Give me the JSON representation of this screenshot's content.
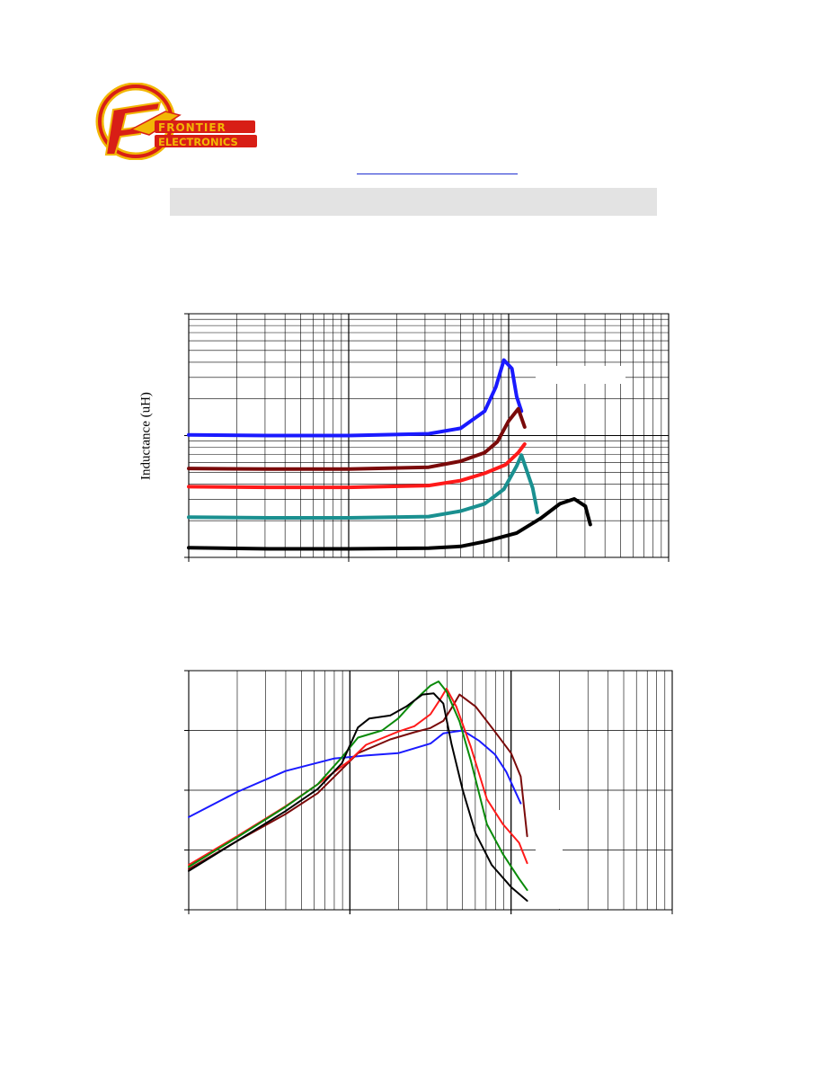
{
  "logo": {
    "line1": "FRONTIER",
    "line2": "ELECTRONICS",
    "icon": "frontier-electronics-logo"
  },
  "colors": {
    "logo_ring": "#d81e16",
    "logo_gold": "#f2b705",
    "series": [
      "#1a1aff",
      "#7a0a0a",
      "#ff1a1a",
      "#1a9090",
      "#000000",
      "#0a8a0a"
    ]
  },
  "chart_data": [
    {
      "type": "line",
      "title": "",
      "xlabel": "",
      "ylabel": "Inductance (uH)",
      "x_scale": "log",
      "y_scale": "log",
      "x_decades": 3,
      "y_decades": 2,
      "grid": true,
      "legend": "right",
      "series": [
        {
          "name": "",
          "color": "#1a1aff",
          "points": [
            [
              0,
              1.005
            ],
            [
              0.5,
              1.0
            ],
            [
              1.0,
              1.0
            ],
            [
              1.5,
              1.015
            ],
            [
              1.7,
              1.06
            ],
            [
              1.85,
              1.2
            ],
            [
              1.92,
              1.4
            ],
            [
              1.97,
              1.62
            ],
            [
              2.02,
              1.55
            ],
            [
              2.05,
              1.32
            ],
            [
              2.08,
              1.2
            ]
          ]
        },
        {
          "name": "",
          "color": "#7a0a0a",
          "points": [
            [
              0,
              0.73
            ],
            [
              0.5,
              0.725
            ],
            [
              1.0,
              0.725
            ],
            [
              1.5,
              0.74
            ],
            [
              1.7,
              0.79
            ],
            [
              1.85,
              0.86
            ],
            [
              1.93,
              0.95
            ],
            [
              2.0,
              1.12
            ],
            [
              2.06,
              1.22
            ],
            [
              2.1,
              1.07
            ]
          ]
        },
        {
          "name": "",
          "color": "#ff1a1a",
          "points": [
            [
              0,
              0.58
            ],
            [
              0.5,
              0.575
            ],
            [
              1.0,
              0.575
            ],
            [
              1.5,
              0.59
            ],
            [
              1.7,
              0.63
            ],
            [
              1.85,
              0.69
            ],
            [
              1.98,
              0.76
            ],
            [
              2.06,
              0.86
            ],
            [
              2.1,
              0.93
            ]
          ]
        },
        {
          "name": "",
          "color": "#1a9090",
          "points": [
            [
              0,
              0.33
            ],
            [
              0.5,
              0.325
            ],
            [
              1.0,
              0.325
            ],
            [
              1.5,
              0.335
            ],
            [
              1.7,
              0.38
            ],
            [
              1.85,
              0.44
            ],
            [
              1.97,
              0.56
            ],
            [
              2.05,
              0.75
            ],
            [
              2.08,
              0.84
            ],
            [
              2.15,
              0.57
            ],
            [
              2.18,
              0.37
            ]
          ]
        },
        {
          "name": "",
          "color": "#000000",
          "points": [
            [
              0,
              0.08
            ],
            [
              0.5,
              0.07
            ],
            [
              1.0,
              0.07
            ],
            [
              1.5,
              0.075
            ],
            [
              1.7,
              0.09
            ],
            [
              1.85,
              0.13
            ],
            [
              2.05,
              0.2
            ],
            [
              2.2,
              0.32
            ],
            [
              2.32,
              0.44
            ],
            [
              2.41,
              0.48
            ],
            [
              2.48,
              0.42
            ],
            [
              2.51,
              0.27
            ]
          ]
        }
      ]
    },
    {
      "type": "line",
      "title": "",
      "xlabel": "",
      "ylabel": "",
      "x_scale": "log",
      "x_decades": 3,
      "y_divisions": 4,
      "grid": true,
      "legend": "right",
      "series": [
        {
          "name": "",
          "color": "#1a1aff",
          "points": [
            [
              0,
              1.55
            ],
            [
              0.3,
              1.97
            ],
            [
              0.6,
              2.32
            ],
            [
              0.9,
              2.53
            ],
            [
              1.1,
              2.58
            ],
            [
              1.3,
              2.62
            ],
            [
              1.5,
              2.78
            ],
            [
              1.58,
              2.95
            ],
            [
              1.7,
              3.0
            ],
            [
              1.8,
              2.83
            ],
            [
              1.9,
              2.6
            ],
            [
              1.97,
              2.31
            ],
            [
              2.06,
              1.78
            ]
          ]
        },
        {
          "name": "",
          "color": "#7a0a0a",
          "points": [
            [
              0,
              0.68
            ],
            [
              0.3,
              1.15
            ],
            [
              0.6,
              1.6
            ],
            [
              0.8,
              1.95
            ],
            [
              0.95,
              2.35
            ],
            [
              1.05,
              2.62
            ],
            [
              1.25,
              2.85
            ],
            [
              1.4,
              2.97
            ],
            [
              1.5,
              3.04
            ],
            [
              1.58,
              3.16
            ],
            [
              1.63,
              3.37
            ],
            [
              1.68,
              3.6
            ],
            [
              1.78,
              3.4
            ],
            [
              1.9,
              2.98
            ],
            [
              2.0,
              2.62
            ],
            [
              2.06,
              2.23
            ],
            [
              2.1,
              1.23
            ]
          ]
        },
        {
          "name": "",
          "color": "#ff1a1a",
          "points": [
            [
              0,
              0.75
            ],
            [
              0.3,
              1.23
            ],
            [
              0.6,
              1.73
            ],
            [
              0.8,
              2.1
            ],
            [
              1.0,
              2.5
            ],
            [
              1.1,
              2.76
            ],
            [
              1.3,
              2.98
            ],
            [
              1.4,
              3.07
            ],
            [
              1.5,
              3.27
            ],
            [
              1.56,
              3.52
            ],
            [
              1.6,
              3.7
            ],
            [
              1.66,
              3.4
            ],
            [
              1.75,
              2.73
            ],
            [
              1.85,
              1.85
            ],
            [
              1.95,
              1.43
            ],
            [
              2.05,
              1.12
            ],
            [
              2.1,
              0.78
            ]
          ]
        },
        {
          "name": "",
          "color": "#0a8a0a",
          "points": [
            [
              0,
              0.72
            ],
            [
              0.3,
              1.21
            ],
            [
              0.6,
              1.72
            ],
            [
              0.8,
              2.1
            ],
            [
              0.95,
              2.55
            ],
            [
              1.05,
              2.88
            ],
            [
              1.2,
              3.0
            ],
            [
              1.3,
              3.2
            ],
            [
              1.4,
              3.5
            ],
            [
              1.5,
              3.75
            ],
            [
              1.55,
              3.82
            ],
            [
              1.6,
              3.65
            ],
            [
              1.68,
              3.15
            ],
            [
              1.75,
              2.5
            ],
            [
              1.85,
              1.43
            ],
            [
              1.95,
              0.93
            ],
            [
              2.05,
              0.52
            ],
            [
              2.1,
              0.33
            ]
          ]
        },
        {
          "name": "",
          "color": "#000000",
          "points": [
            [
              0,
              0.65
            ],
            [
              0.3,
              1.15
            ],
            [
              0.6,
              1.65
            ],
            [
              0.8,
              2.02
            ],
            [
              0.95,
              2.45
            ],
            [
              1.05,
              3.05
            ],
            [
              1.12,
              3.2
            ],
            [
              1.25,
              3.25
            ],
            [
              1.35,
              3.4
            ],
            [
              1.45,
              3.6
            ],
            [
              1.52,
              3.62
            ],
            [
              1.58,
              3.45
            ],
            [
              1.63,
              2.78
            ],
            [
              1.7,
              2.0
            ],
            [
              1.78,
              1.28
            ],
            [
              1.88,
              0.75
            ],
            [
              2.0,
              0.38
            ],
            [
              2.1,
              0.15
            ]
          ]
        }
      ]
    }
  ]
}
